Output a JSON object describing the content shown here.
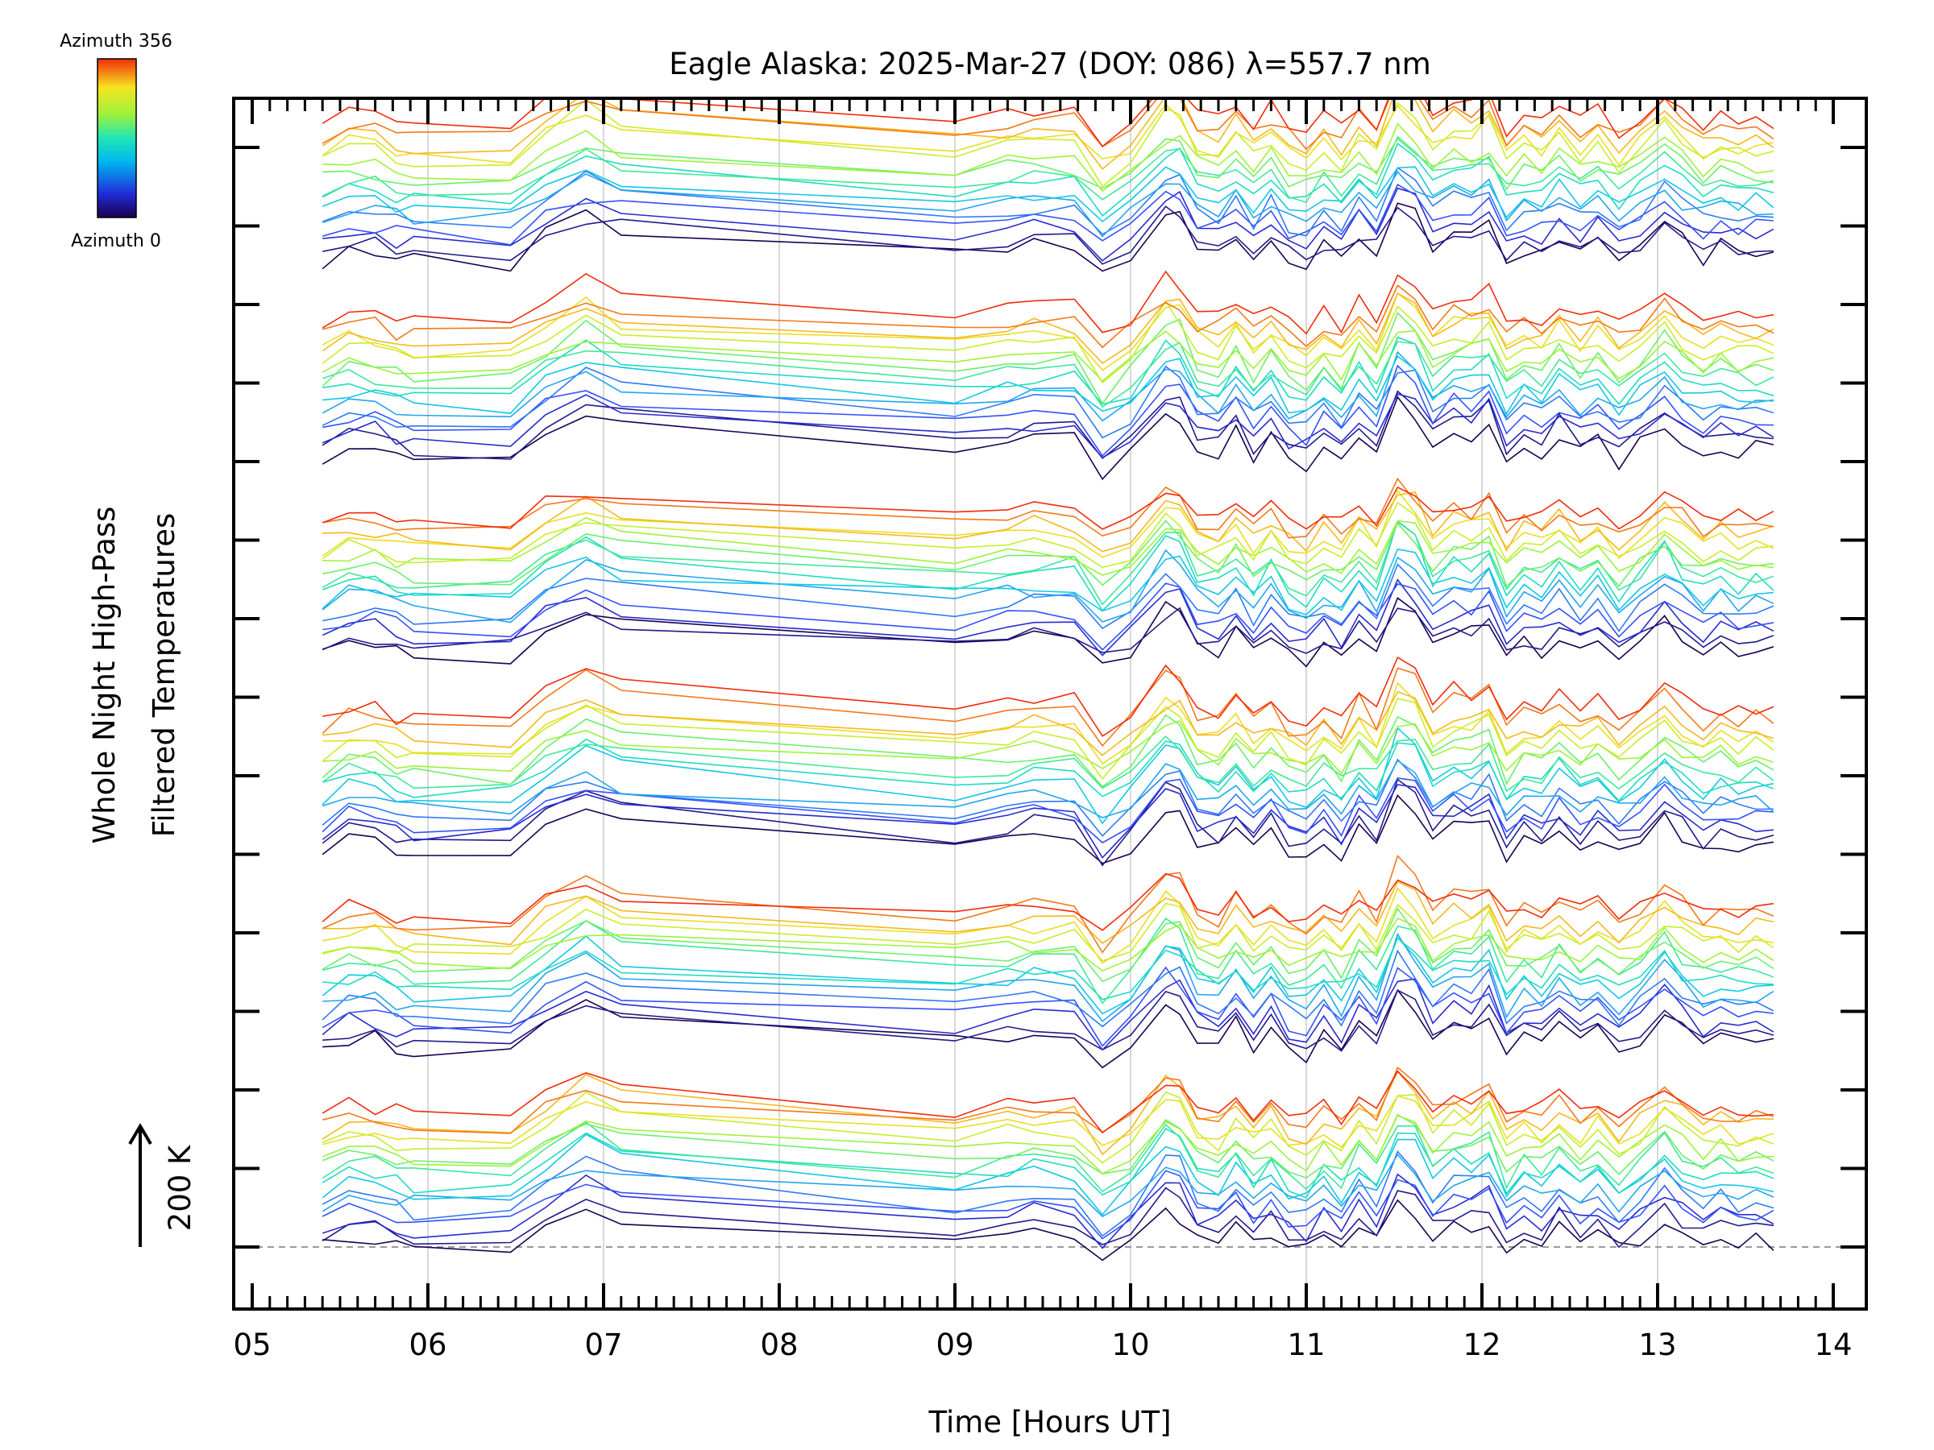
{
  "chart_data": {
    "type": "line",
    "title": "Eagle Alaska: 2025-Mar-27 (DOY: 086) λ=557.7 nm",
    "xlabel": "Time [Hours UT]",
    "ylabel_line1": "Whole Night High-Pass",
    "ylabel_line2": "Filtered Temperatures",
    "scale_label": "200 K",
    "xlim": [
      4.9,
      14.2
    ],
    "x_ticks": [
      "05",
      "06",
      "07",
      "08",
      "09",
      "10",
      "11",
      "12",
      "13",
      "14"
    ],
    "colorbar": {
      "max_label": "Azimuth 356",
      "min_label": "Azimuth 0"
    },
    "grid": true,
    "n_stacks": 6,
    "lines_per_stack": 16,
    "x": [
      5.4,
      5.55,
      5.7,
      5.82,
      5.92,
      6.47,
      6.67,
      6.9,
      7.1,
      9.0,
      9.3,
      9.45,
      9.68,
      9.84,
      10.0,
      10.2,
      10.28,
      10.38,
      10.5,
      10.6,
      10.7,
      10.8,
      10.9,
      11.0,
      11.1,
      11.2,
      11.3,
      11.4,
      11.52,
      11.62,
      11.72,
      11.84,
      11.94,
      12.04,
      12.14,
      12.24,
      12.34,
      12.44,
      12.56,
      12.66,
      12.78,
      12.9,
      13.04,
      13.14,
      13.26,
      13.36,
      13.46,
      13.56,
      13.66
    ],
    "base_profile_K": [
      0,
      20,
      18,
      5,
      0,
      -5,
      40,
      75,
      50,
      10,
      25,
      30,
      28,
      -25,
      8,
      80,
      70,
      20,
      10,
      40,
      5,
      35,
      0,
      -10,
      20,
      -5,
      40,
      10,
      90,
      70,
      20,
      45,
      40,
      60,
      -5,
      20,
      10,
      40,
      10,
      30,
      -5,
      20,
      60,
      30,
      5,
      20,
      10,
      15,
      10
    ]
  }
}
